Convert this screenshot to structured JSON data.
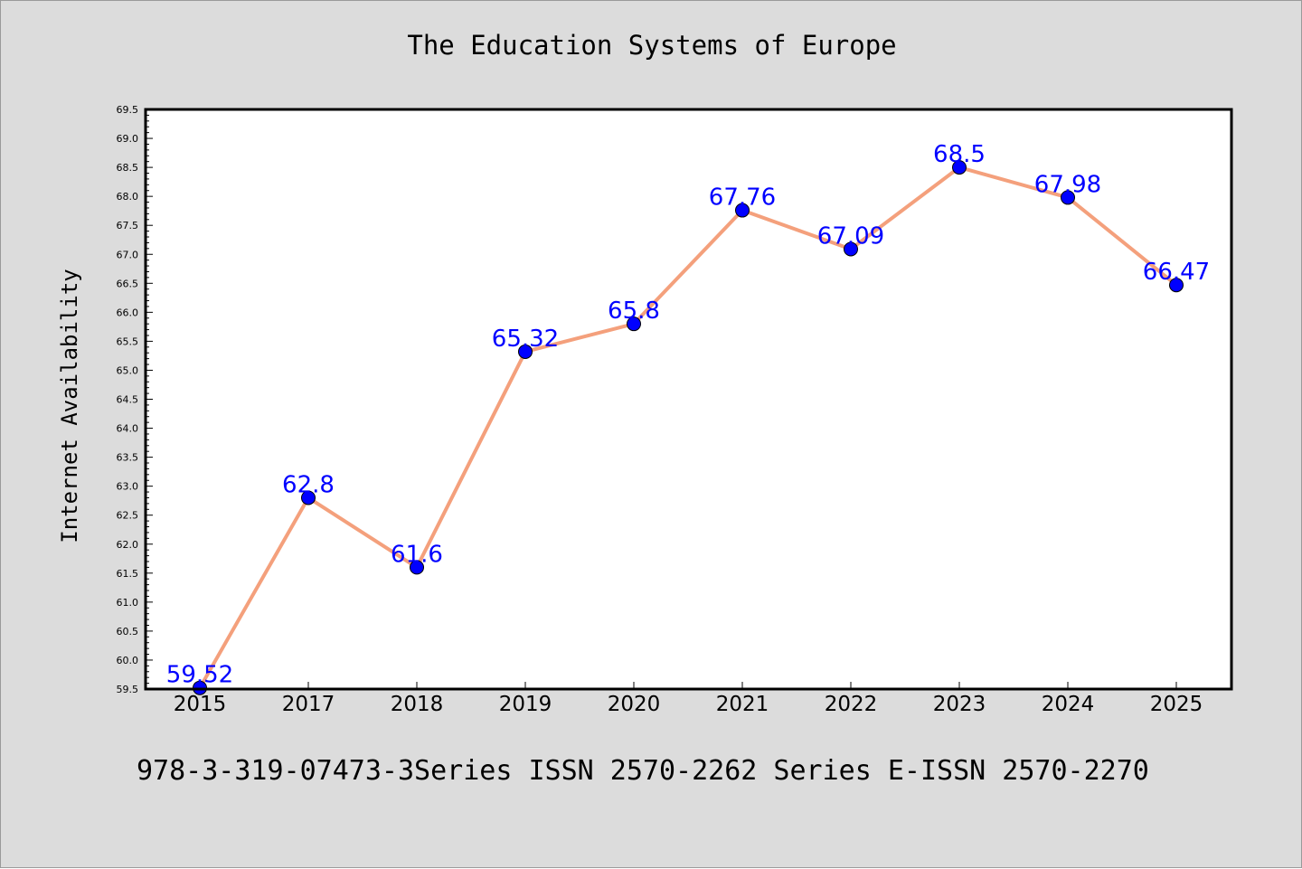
{
  "chart_data": {
    "type": "line",
    "title": "The Education Systems of Europe",
    "xlabel": "",
    "ylabel": "Internet Availability",
    "categories": [
      "2015",
      "2017",
      "2018",
      "2019",
      "2020",
      "2021",
      "2022",
      "2023",
      "2024",
      "2025"
    ],
    "values": [
      59.52,
      62.8,
      61.6,
      65.32,
      65.8,
      67.76,
      67.09,
      68.5,
      67.98,
      66.47
    ],
    "data_labels": [
      "59.52",
      "62.8",
      "61.6",
      "65.32",
      "65.8",
      "67.76",
      "67.09",
      "68.5",
      "67.98",
      "66.47"
    ],
    "ylim": [
      59.5,
      69.5
    ],
    "yticks": [
      "59.5",
      "60.0",
      "60.5",
      "61.0",
      "61.5",
      "62.0",
      "62.5",
      "63.0",
      "63.5",
      "64.0",
      "64.5",
      "65.0",
      "65.5",
      "66.0",
      "66.5",
      "67.0",
      "67.5",
      "68.0",
      "68.5",
      "69.0",
      "69.5"
    ],
    "grid": false,
    "line_color": "#f4a07c",
    "marker_color": "#0000ff",
    "label_color": "#0000ff",
    "background_color": "#dcdcdc",
    "plot_background_color": "#ffffff"
  },
  "footer": {
    "text": "978-3-319-07473-3Series ISSN 2570-2262 Series E-ISSN 2570-2270"
  }
}
